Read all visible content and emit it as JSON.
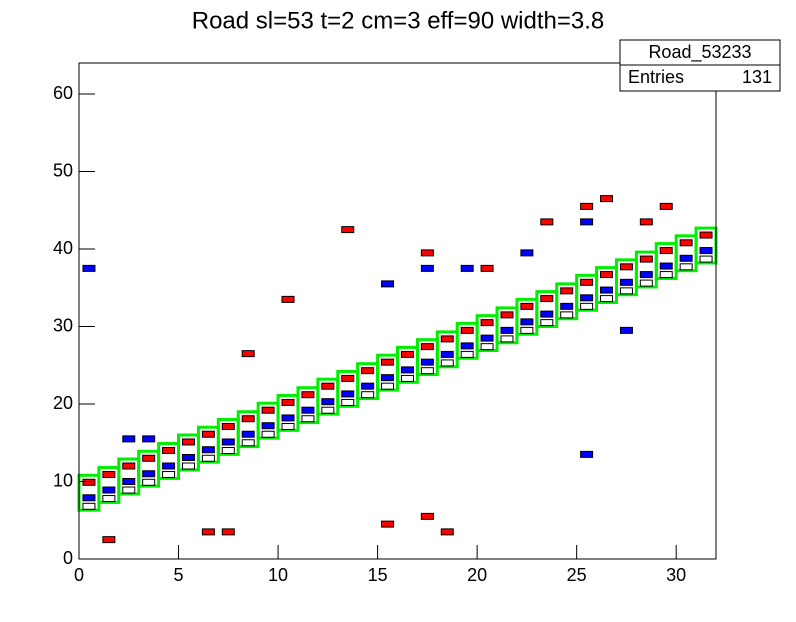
{
  "chart_data": {
    "type": "box2d",
    "title": "Road sl=53 t=2 cm=3 eff=90 width=3.8",
    "stats": {
      "name": "Road_53233",
      "entries_label": "Entries",
      "entries": 131
    },
    "xlim": [
      0,
      32
    ],
    "ylim": [
      0,
      64
    ],
    "xticks": [
      0,
      5,
      10,
      15,
      20,
      25,
      30
    ],
    "yticks": [
      0,
      10,
      20,
      30,
      40,
      50,
      60
    ],
    "road": {
      "color": "#00ee00",
      "x": [
        0,
        1,
        2,
        3,
        4,
        5,
        6,
        7,
        8,
        9,
        10,
        11,
        12,
        13,
        14,
        15,
        16,
        17,
        18,
        19,
        20,
        21,
        22,
        23,
        24,
        25,
        26,
        27,
        28,
        29,
        30,
        31
      ],
      "lower": [
        6.3,
        7.3,
        8.4,
        9.4,
        10.4,
        11.5,
        12.5,
        13.5,
        14.5,
        15.6,
        16.6,
        17.6,
        18.7,
        19.7,
        20.7,
        21.8,
        22.8,
        23.8,
        24.8,
        25.9,
        26.9,
        27.9,
        29.0,
        30.0,
        31.0,
        32.1,
        33.1,
        34.1,
        35.1,
        36.2,
        37.2,
        38.2
      ],
      "upper": [
        10.8,
        11.8,
        12.9,
        13.9,
        14.9,
        16.0,
        17.0,
        18.0,
        19.0,
        20.1,
        21.1,
        22.1,
        23.2,
        24.2,
        25.2,
        26.3,
        27.3,
        28.3,
        29.3,
        30.4,
        31.4,
        32.4,
        33.5,
        34.5,
        35.5,
        36.6,
        37.6,
        38.6,
        39.6,
        40.7,
        41.7,
        42.7
      ]
    },
    "series": [
      {
        "color": "#ff0000",
        "x": [
          0.5,
          1.5,
          2.5,
          3.5,
          4.5,
          5.5,
          6.5,
          7.5,
          8.5,
          9.5,
          10.5,
          11.5,
          12.5,
          13.5,
          14.5,
          15.5,
          16.5,
          17.5,
          18.5,
          19.5,
          20.5,
          21.5,
          22.5,
          23.5,
          24.5,
          25.5,
          26.5,
          27.5,
          28.5,
          29.5,
          30.5,
          31.5,
          13.5,
          10.5,
          8.5,
          6.5,
          7.5,
          15.5,
          17.5,
          18.5,
          17.5,
          26.5,
          25.5,
          28.5,
          29.5,
          23.5,
          20.5,
          1.5
        ],
        "values": [
          9.9,
          10.9,
          12.0,
          13.0,
          14.0,
          15.1,
          16.1,
          17.1,
          18.1,
          19.2,
          20.2,
          21.2,
          22.3,
          23.3,
          24.3,
          25.4,
          26.4,
          27.4,
          28.4,
          29.5,
          30.5,
          31.5,
          32.6,
          33.6,
          34.6,
          35.7,
          36.7,
          37.7,
          38.7,
          39.8,
          40.8,
          41.8,
          42.5,
          33.5,
          26.5,
          3.5,
          3.5,
          4.5,
          39.5,
          3.5,
          5.5,
          46.5,
          45.5,
          43.5,
          45.5,
          43.5,
          37.5,
          2.5
        ]
      },
      {
        "color": "#0000ff",
        "x": [
          0.5,
          1.5,
          2.5,
          3.5,
          4.5,
          5.5,
          6.5,
          7.5,
          8.5,
          9.5,
          10.5,
          11.5,
          12.5,
          13.5,
          14.5,
          15.5,
          16.5,
          17.5,
          18.5,
          19.5,
          20.5,
          21.5,
          22.5,
          23.5,
          24.5,
          25.5,
          26.5,
          27.5,
          28.5,
          29.5,
          30.5,
          31.5,
          0.5,
          17.5,
          19.5,
          15.5,
          22.5,
          25.5,
          27.5,
          25.5,
          2.5,
          3.5
        ],
        "values": [
          7.9,
          8.9,
          10.0,
          11.0,
          12.0,
          13.1,
          14.1,
          15.1,
          16.1,
          17.2,
          18.2,
          19.2,
          20.3,
          21.3,
          22.3,
          23.4,
          24.4,
          25.4,
          26.4,
          27.5,
          28.5,
          29.5,
          30.6,
          31.6,
          32.6,
          33.7,
          34.7,
          35.7,
          36.7,
          37.8,
          38.8,
          39.8,
          37.5,
          37.5,
          37.5,
          35.5,
          39.5,
          13.5,
          29.5,
          43.5,
          15.5,
          15.5
        ]
      },
      {
        "color": "#000000",
        "x": [
          0.5,
          1.5,
          2.5,
          3.5,
          4.5,
          5.5,
          6.5,
          7.5,
          8.5,
          9.5,
          10.5,
          11.5,
          12.5,
          13.5,
          14.5,
          15.5,
          16.5,
          17.5,
          18.5,
          19.5,
          20.5,
          21.5,
          22.5,
          23.5,
          24.5,
          25.5,
          26.5,
          27.5,
          28.5,
          29.5,
          30.5,
          31.5
        ],
        "values": [
          6.8,
          7.8,
          8.9,
          9.9,
          10.9,
          12.0,
          13.0,
          14.0,
          15.0,
          16.1,
          17.1,
          18.1,
          19.2,
          20.2,
          21.2,
          22.3,
          23.3,
          24.3,
          25.3,
          26.4,
          27.4,
          28.4,
          29.5,
          30.5,
          31.5,
          32.6,
          33.6,
          34.6,
          35.6,
          36.7,
          37.7,
          38.7
        ]
      }
    ]
  }
}
